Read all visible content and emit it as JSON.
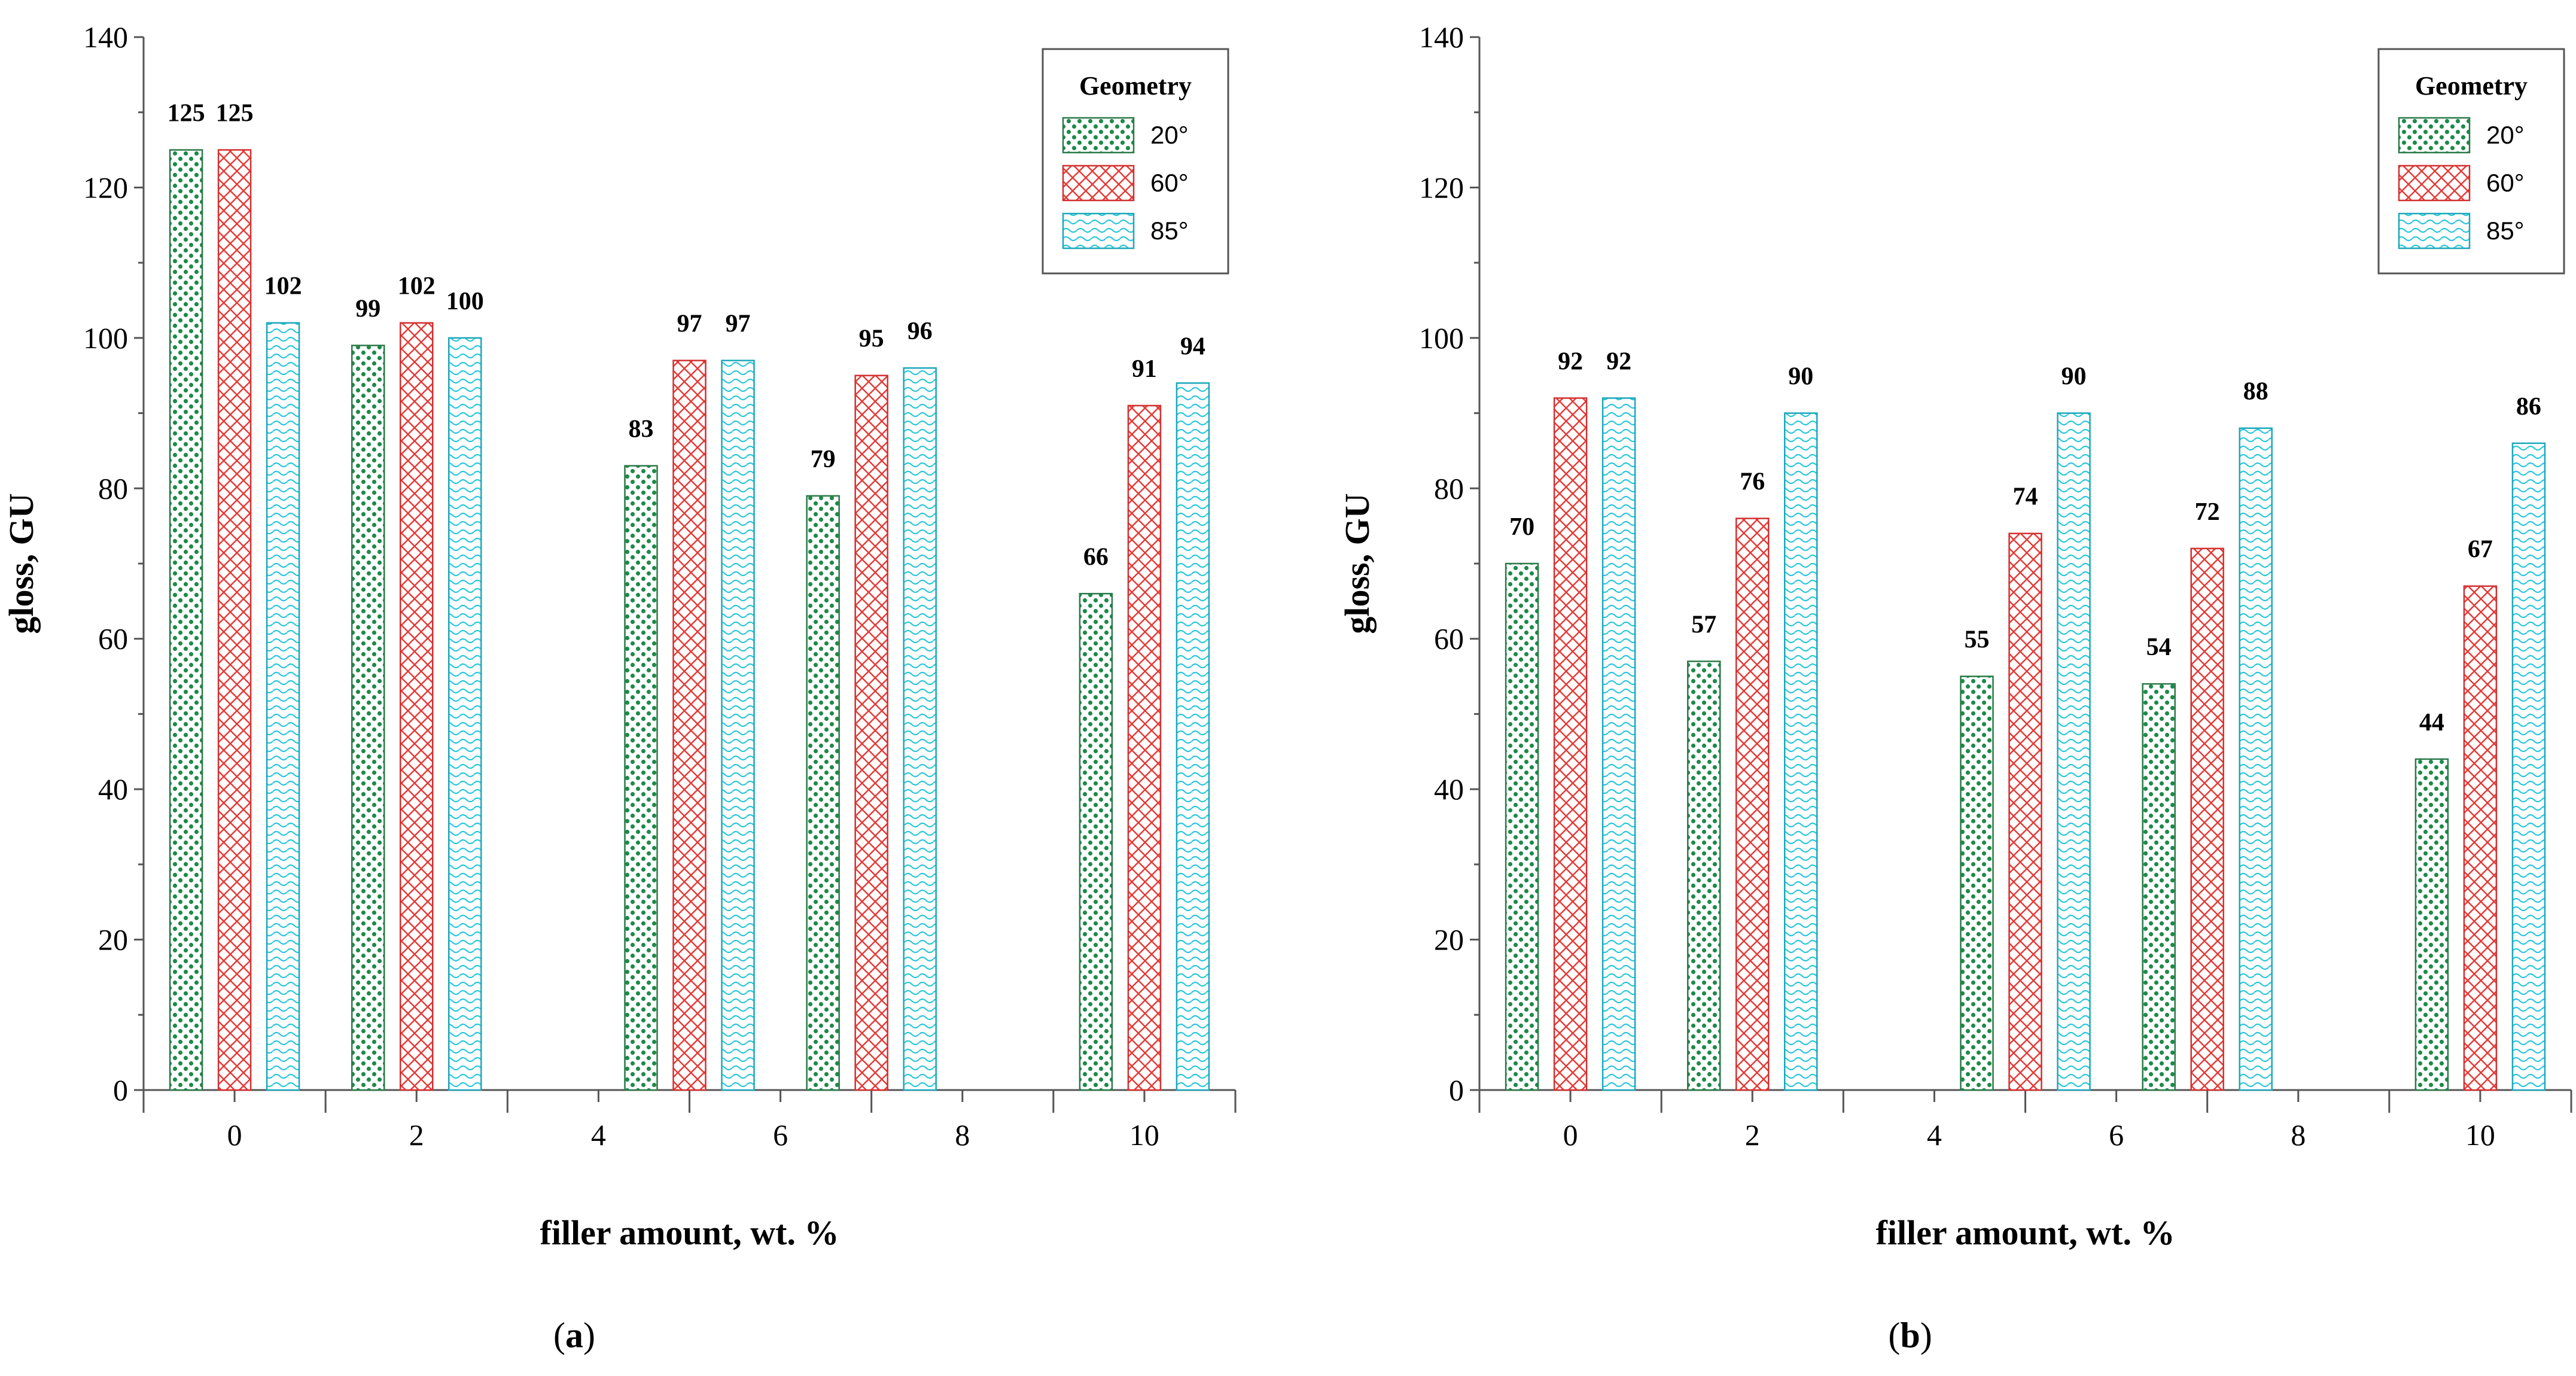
{
  "series_styles": [
    {
      "name": "20°",
      "pattern": "dots",
      "color": "#1e8a4a",
      "stroke": "#2a7a48"
    },
    {
      "name": "60°",
      "pattern": "crosshatch",
      "color": "#e53935",
      "stroke": "#d32f2f"
    },
    {
      "name": "85°",
      "pattern": "waves",
      "color": "#26c6da",
      "stroke": "#1ba7bb"
    }
  ],
  "chart_data": [
    {
      "type": "bar",
      "panel": "(a)",
      "caption_open": "(",
      "caption_letter": "a",
      "caption_close": ")",
      "xlabel": "filler amount, wt. %",
      "ylabel": "gloss, GU",
      "ylim": [
        0,
        140
      ],
      "yticks": [
        0,
        20,
        40,
        60,
        80,
        100,
        120,
        140
      ],
      "xlim": [
        -1,
        11
      ],
      "xticks": [
        0,
        2,
        4,
        6,
        8,
        10
      ],
      "legend_title": "Geometry",
      "legend_position": "top-right",
      "groups": [
        {
          "x": 0,
          "values": [
            125,
            125,
            102
          ],
          "labels": [
            "125",
            "125",
            "102"
          ]
        },
        {
          "x": 2,
          "values": [
            99,
            102,
            100
          ],
          "labels": [
            "99",
            "102",
            "100"
          ]
        },
        {
          "x": 5,
          "values": [
            83,
            97,
            97
          ],
          "labels": [
            "83",
            "97",
            "97"
          ]
        },
        {
          "x": 7,
          "values": [
            79,
            95,
            96
          ],
          "labels": [
            "79",
            "95",
            "96"
          ]
        },
        {
          "x": 10,
          "values": [
            66,
            91,
            94
          ],
          "labels": [
            "66",
            "91",
            "94"
          ]
        }
      ],
      "series": [
        {
          "name": "20°",
          "values": [
            125,
            99,
            83,
            79,
            66
          ]
        },
        {
          "name": "60°",
          "values": [
            125,
            102,
            97,
            95,
            91
          ]
        },
        {
          "name": "85°",
          "values": [
            102,
            100,
            97,
            96,
            94
          ]
        }
      ]
    },
    {
      "type": "bar",
      "panel": "(b)",
      "caption_open": "(",
      "caption_letter": "b",
      "caption_close": ")",
      "xlabel": "filler amount, wt. %",
      "ylabel": "gloss, GU",
      "ylim": [
        0,
        140
      ],
      "yticks": [
        0,
        20,
        40,
        60,
        80,
        100,
        120,
        140
      ],
      "xlim": [
        -1,
        11
      ],
      "xticks": [
        0,
        2,
        4,
        6,
        8,
        10
      ],
      "legend_title": "Geometry",
      "legend_position": "top-right",
      "groups": [
        {
          "x": 0,
          "values": [
            70,
            92,
            92
          ],
          "labels": [
            "70",
            "92",
            "92"
          ]
        },
        {
          "x": 2,
          "values": [
            57,
            76,
            90
          ],
          "labels": [
            "57",
            "76",
            "90"
          ]
        },
        {
          "x": 5,
          "values": [
            55,
            74,
            90
          ],
          "labels": [
            "55",
            "74",
            "90"
          ]
        },
        {
          "x": 7,
          "values": [
            54,
            72,
            88
          ],
          "labels": [
            "54",
            "72",
            "88"
          ]
        },
        {
          "x": 10,
          "values": [
            44,
            67,
            86
          ],
          "labels": [
            "44",
            "67",
            "86"
          ]
        }
      ],
      "series": [
        {
          "name": "20°",
          "values": [
            70,
            57,
            55,
            54,
            44
          ]
        },
        {
          "name": "60°",
          "values": [
            92,
            76,
            74,
            72,
            67
          ]
        },
        {
          "name": "85°",
          "values": [
            92,
            90,
            90,
            88,
            86
          ]
        }
      ]
    }
  ]
}
